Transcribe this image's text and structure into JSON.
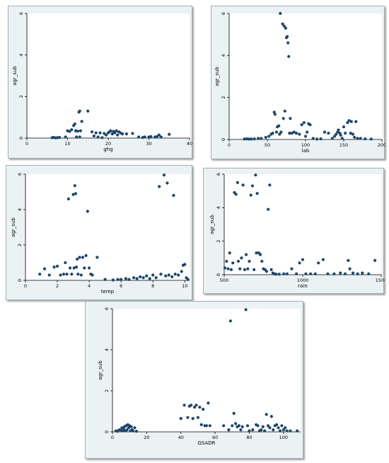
{
  "chart_data": [
    {
      "type": "scatter",
      "xlabel": "ghg",
      "ylabel": "agr_sub",
      "xlim": [
        0,
        40
      ],
      "ylim": [
        0,
        6
      ],
      "xticks": [
        0,
        10,
        20,
        30,
        40
      ],
      "yticks": [
        0,
        2,
        4,
        6
      ],
      "grid": false,
      "color": "#1a476f",
      "points": [
        [
          6.2,
          0.02
        ],
        [
          6.6,
          0.03
        ],
        [
          7.0,
          0.01
        ],
        [
          7.5,
          0.02
        ],
        [
          8.0,
          0.03
        ],
        [
          9.5,
          0.05
        ],
        [
          10.0,
          0.35
        ],
        [
          10.5,
          0.32
        ],
        [
          11.0,
          0.4
        ],
        [
          11.5,
          0.6
        ],
        [
          11.8,
          0.68
        ],
        [
          12.0,
          0.35
        ],
        [
          12.2,
          0.05
        ],
        [
          12.5,
          0.33
        ],
        [
          12.8,
          1.25
        ],
        [
          13.0,
          1.3
        ],
        [
          13.2,
          0.35
        ],
        [
          13.5,
          0.8
        ],
        [
          13.0,
          0.05
        ],
        [
          15.0,
          1.3
        ],
        [
          16.0,
          0.3
        ],
        [
          16.5,
          0.1
        ],
        [
          17.0,
          0.25
        ],
        [
          17.5,
          0.05
        ],
        [
          18.0,
          0.25
        ],
        [
          18.5,
          0.02
        ],
        [
          19.0,
          0.22
        ],
        [
          19.5,
          0.15
        ],
        [
          20.0,
          0.25
        ],
        [
          20.3,
          0.3
        ],
        [
          20.6,
          0.35
        ],
        [
          21.0,
          0.2
        ],
        [
          21.3,
          0.32
        ],
        [
          21.6,
          0.25
        ],
        [
          22.0,
          0.35
        ],
        [
          22.3,
          0.15
        ],
        [
          22.6,
          0.3
        ],
        [
          23.0,
          0.25
        ],
        [
          23.5,
          0.2
        ],
        [
          24.5,
          0.2
        ],
        [
          26.0,
          0.22
        ],
        [
          27.5,
          0.05
        ],
        [
          28.5,
          0.03
        ],
        [
          29.0,
          0.05
        ],
        [
          30.0,
          0.05
        ],
        [
          30.5,
          0.07
        ],
        [
          31.5,
          0.05
        ],
        [
          32.0,
          0.07
        ],
        [
          32.5,
          0.15
        ],
        [
          33.0,
          0.05
        ],
        [
          35.0,
          0.18
        ]
      ]
    },
    {
      "type": "scatter",
      "xlabel": "lab",
      "ylabel": "agr_sub",
      "xlim": [
        0,
        200
      ],
      "ylim": [
        0,
        6
      ],
      "xticks": [
        0,
        50,
        100,
        150,
        200
      ],
      "yticks": [
        0,
        2,
        4,
        6
      ],
      "grid": false,
      "color": "#1a476f",
      "points": [
        [
          20,
          0.02
        ],
        [
          23,
          0.03
        ],
        [
          26,
          0.02
        ],
        [
          29,
          0.02
        ],
        [
          33,
          0.03
        ],
        [
          38,
          0.05
        ],
        [
          42,
          0.05
        ],
        [
          48,
          0.1
        ],
        [
          52,
          0.15
        ],
        [
          55,
          0.25
        ],
        [
          57,
          0.3
        ],
        [
          59,
          1.3
        ],
        [
          60,
          1.2
        ],
        [
          62,
          0.35
        ],
        [
          63,
          0.6
        ],
        [
          65,
          0.65
        ],
        [
          66,
          0.25
        ],
        [
          67,
          6.0
        ],
        [
          68,
          0.35
        ],
        [
          70,
          5.5
        ],
        [
          71,
          1.0
        ],
        [
          72,
          5.4
        ],
        [
          73,
          1.35
        ],
        [
          74,
          5.3
        ],
        [
          75,
          4.85
        ],
        [
          76,
          4.9
        ],
        [
          77,
          4.6
        ],
        [
          78,
          3.95
        ],
        [
          79,
          0.3
        ],
        [
          80,
          1.0
        ],
        [
          82,
          0.3
        ],
        [
          85,
          0.35
        ],
        [
          88,
          0.3
        ],
        [
          92,
          0.25
        ],
        [
          95,
          0.7
        ],
        [
          98,
          0.8
        ],
        [
          100,
          0.15
        ],
        [
          102,
          0.35
        ],
        [
          104,
          0.75
        ],
        [
          106,
          0.7
        ],
        [
          110,
          0.05
        ],
        [
          115,
          0.02
        ],
        [
          120,
          0.03
        ],
        [
          125,
          0.35
        ],
        [
          130,
          0.3
        ],
        [
          135,
          0.05
        ],
        [
          138,
          0.15
        ],
        [
          140,
          0.25
        ],
        [
          142,
          0.35
        ],
        [
          143,
          0.45
        ],
        [
          145,
          0.3
        ],
        [
          146,
          0.2
        ],
        [
          148,
          0.05
        ],
        [
          150,
          0.6
        ],
        [
          152,
          0.3
        ],
        [
          155,
          0.8
        ],
        [
          157,
          0.9
        ],
        [
          159,
          0.3
        ],
        [
          160,
          0.85
        ],
        [
          162,
          0.25
        ],
        [
          164,
          0.1
        ],
        [
          166,
          0.85
        ],
        [
          168,
          0.05
        ],
        [
          172,
          0.05
        ],
        [
          178,
          0.03
        ],
        [
          186,
          0.02
        ]
      ]
    },
    {
      "type": "scatter",
      "xlabel": "temp",
      "ylabel": "agr_sub",
      "xlim": [
        0,
        10.3
      ],
      "ylim": [
        0,
        6
      ],
      "xticks": [
        0,
        2,
        4,
        6,
        8,
        10
      ],
      "yticks": [
        0,
        2,
        4,
        6
      ],
      "grid": false,
      "color": "#1a476f",
      "points": [
        [
          0.9,
          0.35
        ],
        [
          1.2,
          0.65
        ],
        [
          1.5,
          0.3
        ],
        [
          1.8,
          0.75
        ],
        [
          2.0,
          0.8
        ],
        [
          2.2,
          0.3
        ],
        [
          2.4,
          0.35
        ],
        [
          2.5,
          1.0
        ],
        [
          2.6,
          0.35
        ],
        [
          2.7,
          4.6
        ],
        [
          2.8,
          0.7
        ],
        [
          2.9,
          0.35
        ],
        [
          3.0,
          4.85
        ],
        [
          3.05,
          0.7
        ],
        [
          3.1,
          5.35
        ],
        [
          3.15,
          4.9
        ],
        [
          3.2,
          0.75
        ],
        [
          3.25,
          1.2
        ],
        [
          3.3,
          0.35
        ],
        [
          3.4,
          1.3
        ],
        [
          3.5,
          0.3
        ],
        [
          3.6,
          1.3
        ],
        [
          3.7,
          0.7
        ],
        [
          3.8,
          1.4
        ],
        [
          3.9,
          3.9
        ],
        [
          4.0,
          0.7
        ],
        [
          4.1,
          0.35
        ],
        [
          4.2,
          0.3
        ],
        [
          4.5,
          1.3
        ],
        [
          5.0,
          0.05
        ],
        [
          5.5,
          0.02
        ],
        [
          5.8,
          0.05
        ],
        [
          6.0,
          0.05
        ],
        [
          6.3,
          0.1
        ],
        [
          6.5,
          0.05
        ],
        [
          6.8,
          0.15
        ],
        [
          7.0,
          0.1
        ],
        [
          7.2,
          0.2
        ],
        [
          7.4,
          0.15
        ],
        [
          7.6,
          0.25
        ],
        [
          7.8,
          0.1
        ],
        [
          8.0,
          0.3
        ],
        [
          8.2,
          0.15
        ],
        [
          8.4,
          5.3
        ],
        [
          8.5,
          0.35
        ],
        [
          8.7,
          5.95
        ],
        [
          8.8,
          0.25
        ],
        [
          8.9,
          5.5
        ],
        [
          9.0,
          0.3
        ],
        [
          9.2,
          0.2
        ],
        [
          9.3,
          4.8
        ],
        [
          9.4,
          0.35
        ],
        [
          9.6,
          0.3
        ],
        [
          9.8,
          0.5
        ],
        [
          9.9,
          0.85
        ],
        [
          10.0,
          0.9
        ],
        [
          10.1,
          0.15
        ],
        [
          10.2,
          0.05
        ]
      ]
    },
    {
      "type": "scatter",
      "xlabel": "rain",
      "ylabel": "agr_sub",
      "xlim": [
        500,
        1500
      ],
      "ylim": [
        0,
        6
      ],
      "xticks": [
        500,
        1000,
        1500
      ],
      "yticks": [
        0,
        2,
        4,
        6
      ],
      "grid": false,
      "color": "#1a476f",
      "points": [
        [
          505,
          0.4
        ],
        [
          515,
          0.8
        ],
        [
          525,
          0.35
        ],
        [
          535,
          1.3
        ],
        [
          545,
          0.3
        ],
        [
          555,
          0.7
        ],
        [
          565,
          4.9
        ],
        [
          575,
          4.8
        ],
        [
          585,
          5.5
        ],
        [
          590,
          0.8
        ],
        [
          600,
          0.35
        ],
        [
          610,
          1.0
        ],
        [
          620,
          5.35
        ],
        [
          630,
          0.3
        ],
        [
          640,
          1.2
        ],
        [
          650,
          0.35
        ],
        [
          660,
          0.8
        ],
        [
          670,
          4.75
        ],
        [
          680,
          5.3
        ],
        [
          690,
          0.3
        ],
        [
          700,
          5.95
        ],
        [
          705,
          1.3
        ],
        [
          710,
          4.85
        ],
        [
          720,
          1.3
        ],
        [
          730,
          1.2
        ],
        [
          740,
          0.8
        ],
        [
          750,
          0.35
        ],
        [
          760,
          0.3
        ],
        [
          770,
          0.2
        ],
        [
          780,
          3.9
        ],
        [
          790,
          5.35
        ],
        [
          800,
          0.3
        ],
        [
          810,
          0.1
        ],
        [
          820,
          0.05
        ],
        [
          830,
          0.03
        ],
        [
          850,
          0.03
        ],
        [
          880,
          0.05
        ],
        [
          900,
          0.05
        ],
        [
          930,
          0.35
        ],
        [
          960,
          0.05
        ],
        [
          980,
          0.7
        ],
        [
          1000,
          0.9
        ],
        [
          1020,
          0.05
        ],
        [
          1050,
          0.05
        ],
        [
          1080,
          0.05
        ],
        [
          1100,
          0.7
        ],
        [
          1130,
          0.9
        ],
        [
          1160,
          0.05
        ],
        [
          1200,
          0.05
        ],
        [
          1240,
          0.1
        ],
        [
          1270,
          0.05
        ],
        [
          1290,
          0.85
        ],
        [
          1300,
          0.35
        ],
        [
          1320,
          0.1
        ],
        [
          1350,
          0.05
        ],
        [
          1380,
          0.1
        ],
        [
          1420,
          0.05
        ],
        [
          1460,
          0.85
        ]
      ]
    },
    {
      "type": "scatter",
      "xlabel": "GSADR",
      "ylabel": "agr_sub",
      "xlim": [
        0,
        110
      ],
      "ylim": [
        0,
        6
      ],
      "xticks": [
        0,
        20,
        40,
        60,
        80,
        100
      ],
      "yticks": [
        0,
        2,
        4,
        6
      ],
      "grid": false,
      "color": "#1a476f",
      "points": [
        [
          2,
          0.05
        ],
        [
          3,
          0.03
        ],
        [
          4,
          0.1
        ],
        [
          5,
          0.08
        ],
        [
          5.5,
          0.2
        ],
        [
          6,
          0.05
        ],
        [
          6.5,
          0.15
        ],
        [
          7,
          0.25
        ],
        [
          7.5,
          0.05
        ],
        [
          8,
          0.3
        ],
        [
          8.5,
          0.1
        ],
        [
          9,
          0.35
        ],
        [
          9.5,
          0.2
        ],
        [
          10,
          0.3
        ],
        [
          10.5,
          0.05
        ],
        [
          11,
          0.25
        ],
        [
          11.5,
          0.1
        ],
        [
          12,
          0.05
        ],
        [
          13,
          0.2
        ],
        [
          14,
          0.03
        ],
        [
          40,
          0.65
        ],
        [
          42,
          1.3
        ],
        [
          44,
          0.7
        ],
        [
          45,
          1.25
        ],
        [
          46,
          1.3
        ],
        [
          47,
          0.65
        ],
        [
          48,
          1.2
        ],
        [
          49,
          1.3
        ],
        [
          50,
          0.7
        ],
        [
          51,
          1.2
        ],
        [
          52,
          0.35
        ],
        [
          53,
          1.1
        ],
        [
          54,
          0.3
        ],
        [
          55,
          0.3
        ],
        [
          56,
          1.4
        ],
        [
          57,
          0.3
        ],
        [
          65,
          0.3
        ],
        [
          68,
          0.1
        ],
        [
          69,
          5.4
        ],
        [
          70,
          0.3
        ],
        [
          71,
          0.9
        ],
        [
          72,
          0.4
        ],
        [
          73,
          0.25
        ],
        [
          74,
          0.3
        ],
        [
          75,
          0.1
        ],
        [
          76,
          0.25
        ],
        [
          78,
          5.95
        ],
        [
          79,
          0.3
        ],
        [
          80,
          0.05
        ],
        [
          82,
          0.1
        ],
        [
          84,
          0.35
        ],
        [
          85,
          0.3
        ],
        [
          86,
          0.05
        ],
        [
          87,
          0.1
        ],
        [
          88,
          0.25
        ],
        [
          89,
          0.05
        ],
        [
          90,
          0.85
        ],
        [
          91,
          0.3
        ],
        [
          92,
          0.2
        ],
        [
          93,
          0.75
        ],
        [
          94,
          0.1
        ],
        [
          95,
          0.3
        ],
        [
          96,
          0.35
        ],
        [
          97,
          0.2
        ],
        [
          98,
          0.05
        ],
        [
          99,
          0.3
        ],
        [
          100,
          0.1
        ],
        [
          101,
          0.2
        ],
        [
          102,
          0.05
        ],
        [
          104,
          0.05
        ],
        [
          108,
          0.05
        ]
      ]
    }
  ]
}
